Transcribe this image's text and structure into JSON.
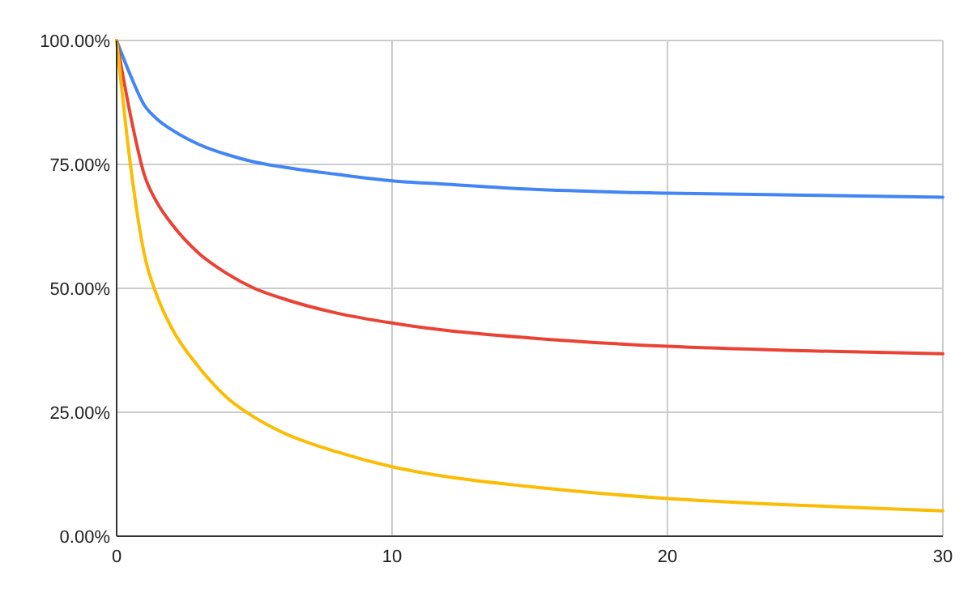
{
  "chart_data": {
    "type": "line",
    "x": [
      0,
      0.5,
      1,
      1.5,
      2,
      3,
      4,
      5,
      6,
      8,
      10,
      12,
      15,
      20,
      25,
      30
    ],
    "series": [
      {
        "color": "#4285f4",
        "values": [
          100,
          93,
          87,
          84,
          82,
          79,
          77,
          75.5,
          74.5,
          73,
          71.7,
          71,
          70,
          69.2,
          68.8,
          68.4
        ]
      },
      {
        "color": "#ea4335",
        "values": [
          100,
          85,
          73,
          67,
          63,
          57,
          53,
          50,
          48,
          45,
          43,
          41.5,
          40,
          38.3,
          37.4,
          36.8
        ]
      },
      {
        "color": "#fbbc04",
        "values": [
          100,
          75,
          57,
          48,
          42,
          34,
          28,
          24,
          21,
          17,
          14,
          12,
          10,
          7.6,
          6.2,
          5.1
        ]
      }
    ],
    "xlim": [
      0,
      30
    ],
    "xticks": [
      0,
      10,
      20,
      30
    ],
    "ylim": [
      0,
      100
    ],
    "yticks": [
      {
        "value": 0,
        "label": "0.00%"
      },
      {
        "value": 25,
        "label": "25.00%"
      },
      {
        "value": 50,
        "label": "50.00%"
      },
      {
        "value": 75,
        "label": "75.00%"
      },
      {
        "value": 100,
        "label": "100.00%"
      }
    ],
    "grid": true
  }
}
